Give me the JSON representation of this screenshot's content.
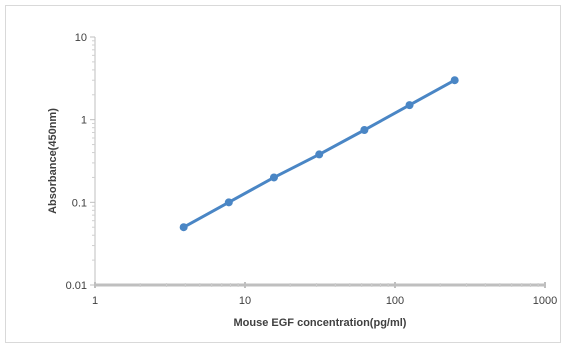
{
  "chart_data": {
    "type": "line",
    "title": "",
    "xlabel": "Mouse EGF concentration(pg/ml)",
    "ylabel": "Absorbance(450nm)",
    "x_scale": "log",
    "y_scale": "log",
    "xlim": [
      1,
      1000
    ],
    "ylim": [
      0.01,
      10
    ],
    "x_ticks": [
      "1",
      "10",
      "100",
      "1000"
    ],
    "y_ticks": [
      "10",
      "1",
      "0.1",
      "0.01"
    ],
    "grid": false,
    "legend": "none",
    "series": [
      {
        "color": "#4a86c5",
        "x": [
          3.9,
          7.8,
          15.6,
          31.25,
          62.5,
          125,
          250
        ],
        "y": [
          0.05,
          0.1,
          0.2,
          0.38,
          0.75,
          1.5,
          3.0
        ]
      }
    ]
  }
}
